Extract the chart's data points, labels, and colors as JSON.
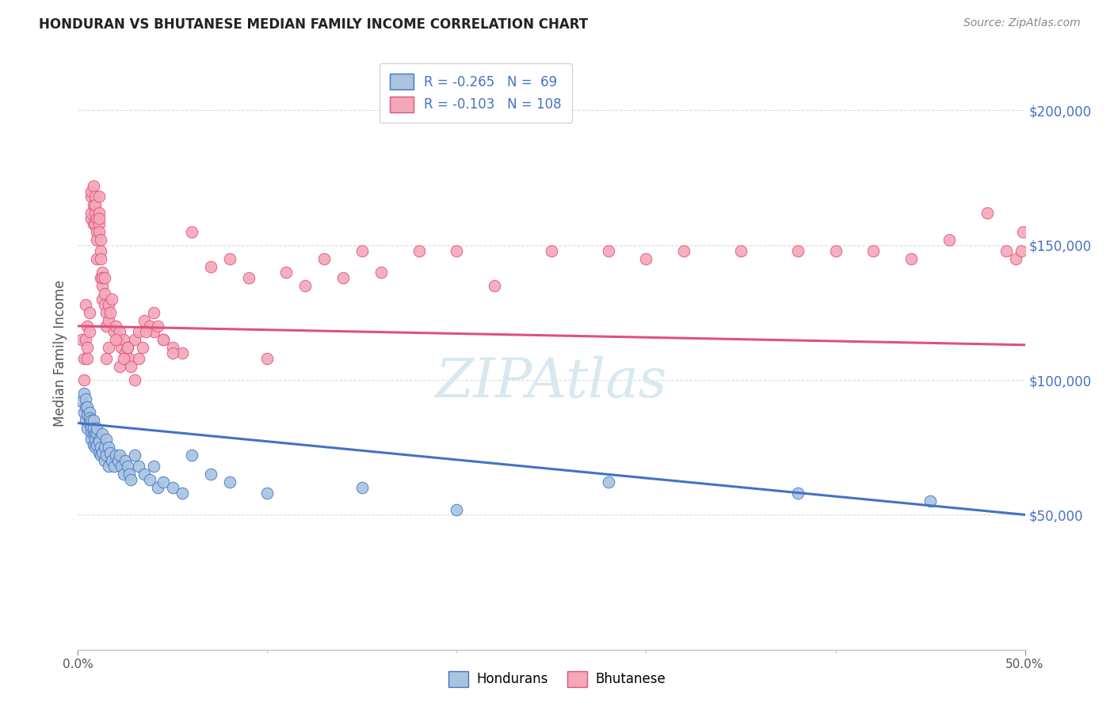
{
  "title": "HONDURAN VS BHUTANESE MEDIAN FAMILY INCOME CORRELATION CHART",
  "source": "Source: ZipAtlas.com",
  "ylabel": "Median Family Income",
  "ytick_labels": [
    "$50,000",
    "$100,000",
    "$150,000",
    "$200,000"
  ],
  "ytick_values": [
    50000,
    100000,
    150000,
    200000
  ],
  "ylim": [
    0,
    220000
  ],
  "xlim": [
    0.0,
    0.5
  ],
  "legend_r1": "-0.265",
  "legend_n1": "69",
  "legend_r2": "-0.103",
  "legend_n2": "108",
  "blue_fill": "#A8C4E0",
  "pink_fill": "#F4A8B8",
  "blue_line": "#4472C4",
  "pink_line": "#E05080",
  "background_color": "#FFFFFF",
  "watermark_color": "#D8E8F0",
  "honduran_x": [
    0.002,
    0.003,
    0.003,
    0.004,
    0.004,
    0.004,
    0.005,
    0.005,
    0.005,
    0.006,
    0.006,
    0.006,
    0.007,
    0.007,
    0.007,
    0.007,
    0.008,
    0.008,
    0.008,
    0.008,
    0.009,
    0.009,
    0.009,
    0.01,
    0.01,
    0.01,
    0.011,
    0.011,
    0.011,
    0.012,
    0.012,
    0.013,
    0.013,
    0.014,
    0.014,
    0.015,
    0.015,
    0.016,
    0.016,
    0.017,
    0.018,
    0.019,
    0.02,
    0.021,
    0.022,
    0.023,
    0.024,
    0.025,
    0.026,
    0.027,
    0.028,
    0.03,
    0.032,
    0.035,
    0.038,
    0.04,
    0.042,
    0.045,
    0.05,
    0.055,
    0.06,
    0.07,
    0.08,
    0.1,
    0.15,
    0.2,
    0.28,
    0.38,
    0.45
  ],
  "honduran_y": [
    92000,
    88000,
    95000,
    90000,
    85000,
    93000,
    87000,
    82000,
    90000,
    88000,
    86000,
    84000,
    82000,
    85000,
    80000,
    78000,
    85000,
    80000,
    76000,
    82000,
    80000,
    78000,
    75000,
    80000,
    76000,
    82000,
    78000,
    73000,
    77000,
    75000,
    72000,
    80000,
    73000,
    75000,
    70000,
    72000,
    78000,
    75000,
    68000,
    73000,
    70000,
    68000,
    72000,
    70000,
    72000,
    68000,
    65000,
    70000,
    68000,
    65000,
    63000,
    72000,
    68000,
    65000,
    63000,
    68000,
    60000,
    62000,
    60000,
    58000,
    72000,
    65000,
    62000,
    58000,
    60000,
    52000,
    62000,
    58000,
    55000
  ],
  "bhutanese_x": [
    0.002,
    0.003,
    0.003,
    0.004,
    0.004,
    0.005,
    0.005,
    0.005,
    0.006,
    0.006,
    0.007,
    0.007,
    0.007,
    0.007,
    0.008,
    0.008,
    0.008,
    0.009,
    0.009,
    0.009,
    0.009,
    0.01,
    0.01,
    0.01,
    0.01,
    0.011,
    0.011,
    0.011,
    0.011,
    0.011,
    0.012,
    0.012,
    0.012,
    0.012,
    0.013,
    0.013,
    0.013,
    0.013,
    0.014,
    0.014,
    0.014,
    0.015,
    0.015,
    0.016,
    0.016,
    0.017,
    0.018,
    0.019,
    0.02,
    0.021,
    0.022,
    0.023,
    0.024,
    0.025,
    0.026,
    0.027,
    0.028,
    0.03,
    0.032,
    0.035,
    0.038,
    0.04,
    0.045,
    0.05,
    0.055,
    0.06,
    0.07,
    0.08,
    0.09,
    0.1,
    0.11,
    0.12,
    0.13,
    0.14,
    0.15,
    0.16,
    0.18,
    0.2,
    0.22,
    0.25,
    0.28,
    0.3,
    0.32,
    0.35,
    0.38,
    0.4,
    0.42,
    0.44,
    0.46,
    0.48,
    0.49,
    0.495,
    0.498,
    0.499,
    0.015,
    0.016,
    0.02,
    0.022,
    0.024,
    0.026,
    0.03,
    0.032,
    0.034,
    0.036,
    0.04,
    0.042,
    0.045,
    0.05
  ],
  "bhutanese_y": [
    115000,
    100000,
    108000,
    115000,
    128000,
    112000,
    120000,
    108000,
    125000,
    118000,
    160000,
    168000,
    162000,
    170000,
    165000,
    172000,
    158000,
    162000,
    168000,
    158000,
    165000,
    145000,
    155000,
    152000,
    160000,
    162000,
    158000,
    168000,
    160000,
    155000,
    148000,
    152000,
    145000,
    138000,
    140000,
    135000,
    138000,
    130000,
    132000,
    138000,
    128000,
    125000,
    120000,
    128000,
    122000,
    125000,
    130000,
    118000,
    120000,
    115000,
    118000,
    112000,
    115000,
    110000,
    112000,
    108000,
    105000,
    115000,
    118000,
    122000,
    120000,
    118000,
    115000,
    112000,
    110000,
    155000,
    142000,
    145000,
    138000,
    108000,
    140000,
    135000,
    145000,
    138000,
    148000,
    140000,
    148000,
    148000,
    135000,
    148000,
    148000,
    145000,
    148000,
    148000,
    148000,
    148000,
    148000,
    145000,
    152000,
    162000,
    148000,
    145000,
    148000,
    155000,
    108000,
    112000,
    115000,
    105000,
    108000,
    112000,
    100000,
    108000,
    112000,
    118000,
    125000,
    120000,
    115000,
    110000
  ],
  "blue_line_x0": 0.0,
  "blue_line_x1": 0.5,
  "blue_line_y0": 84000,
  "blue_line_y1": 50000,
  "pink_line_x0": 0.0,
  "pink_line_x1": 0.5,
  "pink_line_y0": 120000,
  "pink_line_y1": 113000
}
